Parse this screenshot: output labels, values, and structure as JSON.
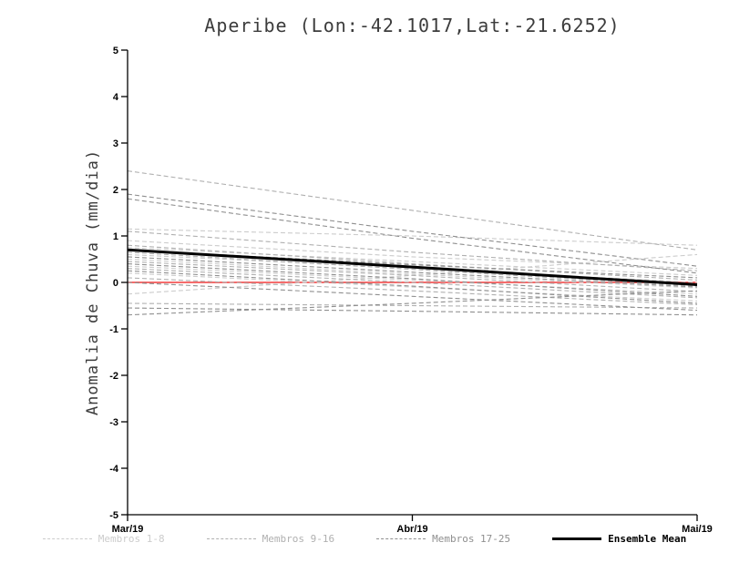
{
  "chart_data": {
    "type": "line",
    "title": "Aperibe (Lon:-42.1017,Lat:-21.6252)",
    "ylabel": "Anomalia de Chuva (mm/dia)",
    "xlabel": "",
    "x_tick_labels": [
      "Mar/19",
      "Abr/19",
      "Mai/19"
    ],
    "ylim": [
      -5,
      5
    ],
    "y_ticks": [
      -5,
      -4,
      -3,
      -2,
      -1,
      0,
      1,
      2,
      3,
      4,
      5
    ],
    "grid": false,
    "legend_position": "bottom",
    "zero_line": {
      "value": 0,
      "color": "#f23c3c"
    },
    "groups": [
      {
        "name": "Membros 1-8",
        "color": "#cccccc",
        "line_style": "dashed",
        "series": [
          [
            1.15,
            1.0,
            0.8
          ],
          [
            0.9,
            0.55,
            0.3
          ],
          [
            0.75,
            0.45,
            0.15
          ],
          [
            0.6,
            0.3,
            0.0
          ],
          [
            0.5,
            0.18,
            -0.12
          ],
          [
            0.35,
            0.05,
            -0.25
          ],
          [
            0.2,
            -0.1,
            -0.4
          ],
          [
            -0.25,
            0.15,
            0.6
          ]
        ]
      },
      {
        "name": "Membros 9-16",
        "color": "#b0b0b0",
        "line_style": "dashed",
        "series": [
          [
            2.4,
            1.55,
            0.7
          ],
          [
            1.1,
            0.65,
            0.25
          ],
          [
            0.8,
            0.4,
            0.05
          ],
          [
            0.65,
            0.28,
            -0.08
          ],
          [
            0.45,
            0.15,
            -0.2
          ],
          [
            0.3,
            0.0,
            -0.33
          ],
          [
            0.1,
            -0.18,
            -0.48
          ],
          [
            -0.45,
            -0.5,
            -0.55
          ]
        ]
      },
      {
        "name": "Membros 17-25",
        "color": "#8f8f8f",
        "line_style": "dashed",
        "series": [
          [
            1.9,
            1.1,
            0.35
          ],
          [
            1.8,
            0.95,
            0.2
          ],
          [
            0.7,
            0.38,
            0.1
          ],
          [
            0.55,
            0.22,
            -0.1
          ],
          [
            0.4,
            0.08,
            -0.3
          ],
          [
            0.25,
            -0.08,
            -0.45
          ],
          [
            0.0,
            -0.3,
            -0.6
          ],
          [
            -0.55,
            -0.62,
            -0.7
          ],
          [
            -0.7,
            -0.45,
            -0.18
          ]
        ]
      }
    ],
    "mean": {
      "name": "Ensemble Mean",
      "color": "#000000",
      "line_style": "solid",
      "values": [
        0.7,
        0.33,
        -0.05
      ]
    }
  }
}
